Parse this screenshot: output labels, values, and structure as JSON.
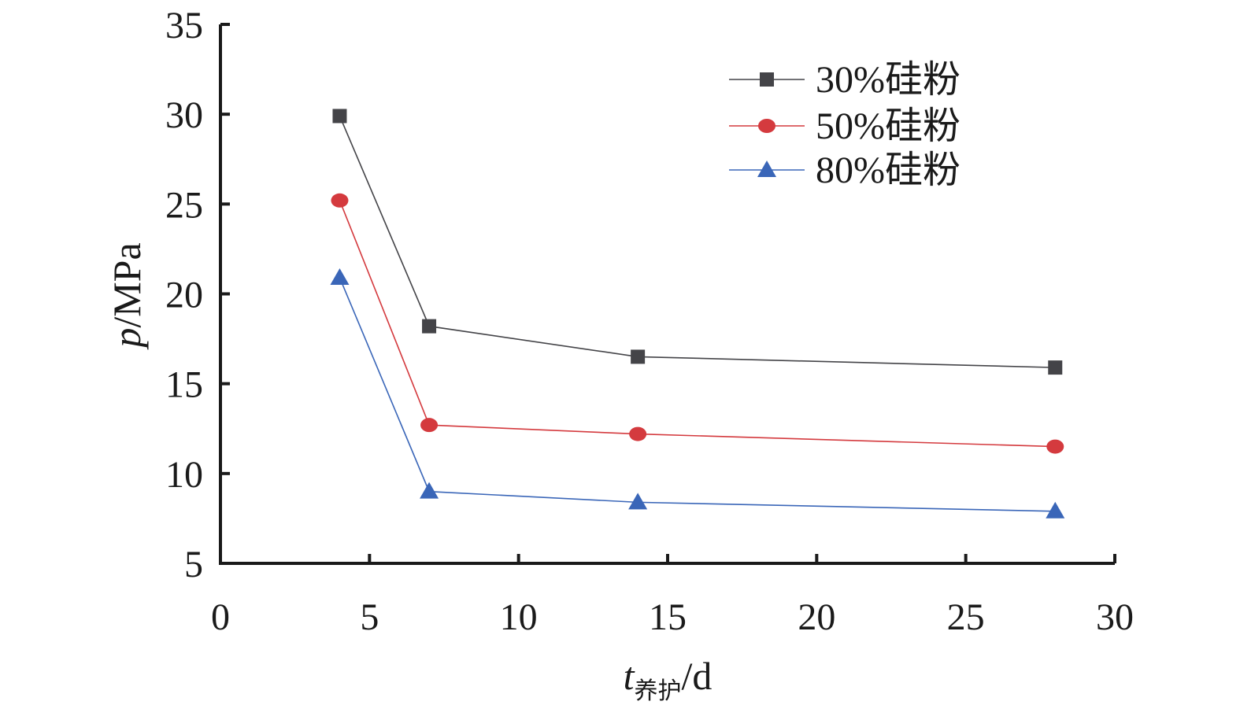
{
  "chart_data": {
    "type": "line",
    "x_axis": {
      "label_var": "t",
      "label_sub": "养护",
      "label_unit": "/d",
      "min": 0,
      "max": 30,
      "ticks": [
        "0",
        "5",
        "10",
        "15",
        "20",
        "25",
        "30"
      ]
    },
    "y_axis": {
      "label_var": "p",
      "label_unit": "/MPa",
      "min": 5,
      "max": 35,
      "ticks": [
        "5",
        "10",
        "15",
        "20",
        "25",
        "30",
        "35"
      ]
    },
    "series": [
      {
        "name": "30%硅粉",
        "color": "#444448",
        "marker": "square",
        "x": [
          4,
          7,
          14,
          28
        ],
        "y": [
          29.9,
          18.2,
          16.5,
          15.9
        ]
      },
      {
        "name": "50%硅粉",
        "color": "#d43a3e",
        "marker": "circle",
        "x": [
          4,
          7,
          14,
          28
        ],
        "y": [
          25.2,
          12.7,
          12.2,
          11.5
        ]
      },
      {
        "name": "80%硅粉",
        "color": "#3a66b8",
        "marker": "triangle",
        "x": [
          4,
          7,
          14,
          28
        ],
        "y": [
          20.9,
          9.0,
          8.4,
          7.9
        ]
      }
    ],
    "legend_position": "top-right",
    "grid": false
  }
}
